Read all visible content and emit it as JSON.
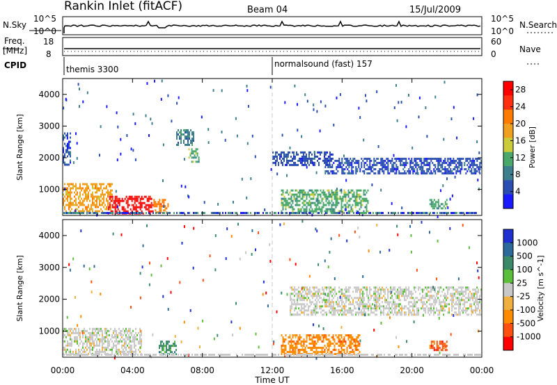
{
  "header": {
    "station": "Rankin Inlet (fitACF)",
    "beam": "Beam 04",
    "date": "15/Jul/2009"
  },
  "top_panels": {
    "nsky_label": "N.Sky",
    "nsky_ticks": [
      "10^5",
      "10^0"
    ],
    "nsearch_label": "N.Search",
    "nsearch_ticks": [
      "10^5",
      "10^0"
    ],
    "freq_label": "Freq.",
    "freq_unit": "[MHz]",
    "freq_ticks": [
      "18",
      "8"
    ],
    "nave_label": "Nave",
    "nave_ticks": [
      "60",
      "0"
    ],
    "cpid_label": "CPID",
    "cpid_segments": [
      {
        "text": "themis 3300",
        "start_hour": 0
      },
      {
        "text": "normalsound (fast) 157",
        "start_hour": 12
      }
    ]
  },
  "chart_data": [
    {
      "type": "heatmap",
      "title": "",
      "xlabel": "Time UT",
      "ylabel": "Slant Range [km]",
      "xlim": [
        0,
        24
      ],
      "ylim": [
        180,
        4500
      ],
      "x_ticks": [
        "00:00",
        "04:00",
        "08:00",
        "12:00",
        "16:00",
        "20:00",
        "00:00"
      ],
      "y_ticks": [
        1000,
        2000,
        3000,
        4000
      ],
      "colorbar": {
        "label": "Power [dB]",
        "ticks": [
          4,
          8,
          12,
          16,
          20,
          24,
          28
        ],
        "range": [
          0,
          30
        ],
        "colors": [
          "#1a1aff",
          "#2b4fb0",
          "#3d7f8f",
          "#4aa86a",
          "#cccc3a",
          "#f0a020",
          "#ff7a00",
          "#ff3010",
          "#ff0000"
        ]
      },
      "regions": [
        {
          "hours": [
            0.0,
            0.4
          ],
          "range_km": [
            1800,
            2800
          ],
          "value": 6
        },
        {
          "hours": [
            0.0,
            2.8
          ],
          "range_km": [
            300,
            1200
          ],
          "value": 18
        },
        {
          "hours": [
            2.5,
            5.2
          ],
          "range_km": [
            250,
            800
          ],
          "value": 28
        },
        {
          "hours": [
            5.2,
            6.0
          ],
          "range_km": [
            300,
            700
          ],
          "value": 22
        },
        {
          "hours": [
            6.5,
            7.5
          ],
          "range_km": [
            2400,
            2900
          ],
          "value": 8
        },
        {
          "hours": [
            7.2,
            7.8
          ],
          "range_km": [
            1900,
            2300
          ],
          "value": 10
        },
        {
          "hours": [
            12.0,
            15.5
          ],
          "range_km": [
            1800,
            2200
          ],
          "value": 6
        },
        {
          "hours": [
            15.0,
            24.0
          ],
          "range_km": [
            1500,
            2000
          ],
          "value": 6
        },
        {
          "hours": [
            12.5,
            17.5
          ],
          "range_km": [
            300,
            1000
          ],
          "value": 10
        },
        {
          "hours": [
            21.0,
            22.0
          ],
          "range_km": [
            400,
            700
          ],
          "value": 12
        }
      ]
    },
    {
      "type": "heatmap",
      "title": "",
      "xlabel": "Time UT",
      "ylabel": "Slant Range [km]",
      "xlim": [
        0,
        24
      ],
      "ylim": [
        180,
        4500
      ],
      "x_ticks": [
        "00:00",
        "04:00",
        "08:00",
        "12:00",
        "16:00",
        "20:00",
        "00:00"
      ],
      "y_ticks": [
        1000,
        2000,
        3000,
        4000
      ],
      "colorbar": {
        "label": "Velocity [m s^-1]",
        "ticks": [
          "1000",
          "500",
          "100",
          "25",
          "-25",
          "-100",
          "-500",
          "-1000"
        ],
        "colors": [
          "#2030d0",
          "#2c6a9a",
          "#3a8a6a",
          "#5bbf3b",
          "#c8c8c8",
          "#f0b040",
          "#ff8c00",
          "#ff5010",
          "#ff0000"
        ]
      },
      "regions": [
        {
          "hours": [
            0.0,
            4.5
          ],
          "range_km": [
            300,
            1100
          ],
          "value": "0"
        },
        {
          "hours": [
            5.5,
            6.5
          ],
          "range_km": [
            300,
            700
          ],
          "value": "100"
        },
        {
          "hours": [
            12.5,
            17.0
          ],
          "range_km": [
            300,
            900
          ],
          "value": "-100"
        },
        {
          "hours": [
            13.0,
            24.0
          ],
          "range_km": [
            1500,
            2400
          ],
          "value": "0"
        },
        {
          "hours": [
            21.0,
            22.0
          ],
          "range_km": [
            400,
            700
          ],
          "value": "-500"
        }
      ]
    }
  ]
}
